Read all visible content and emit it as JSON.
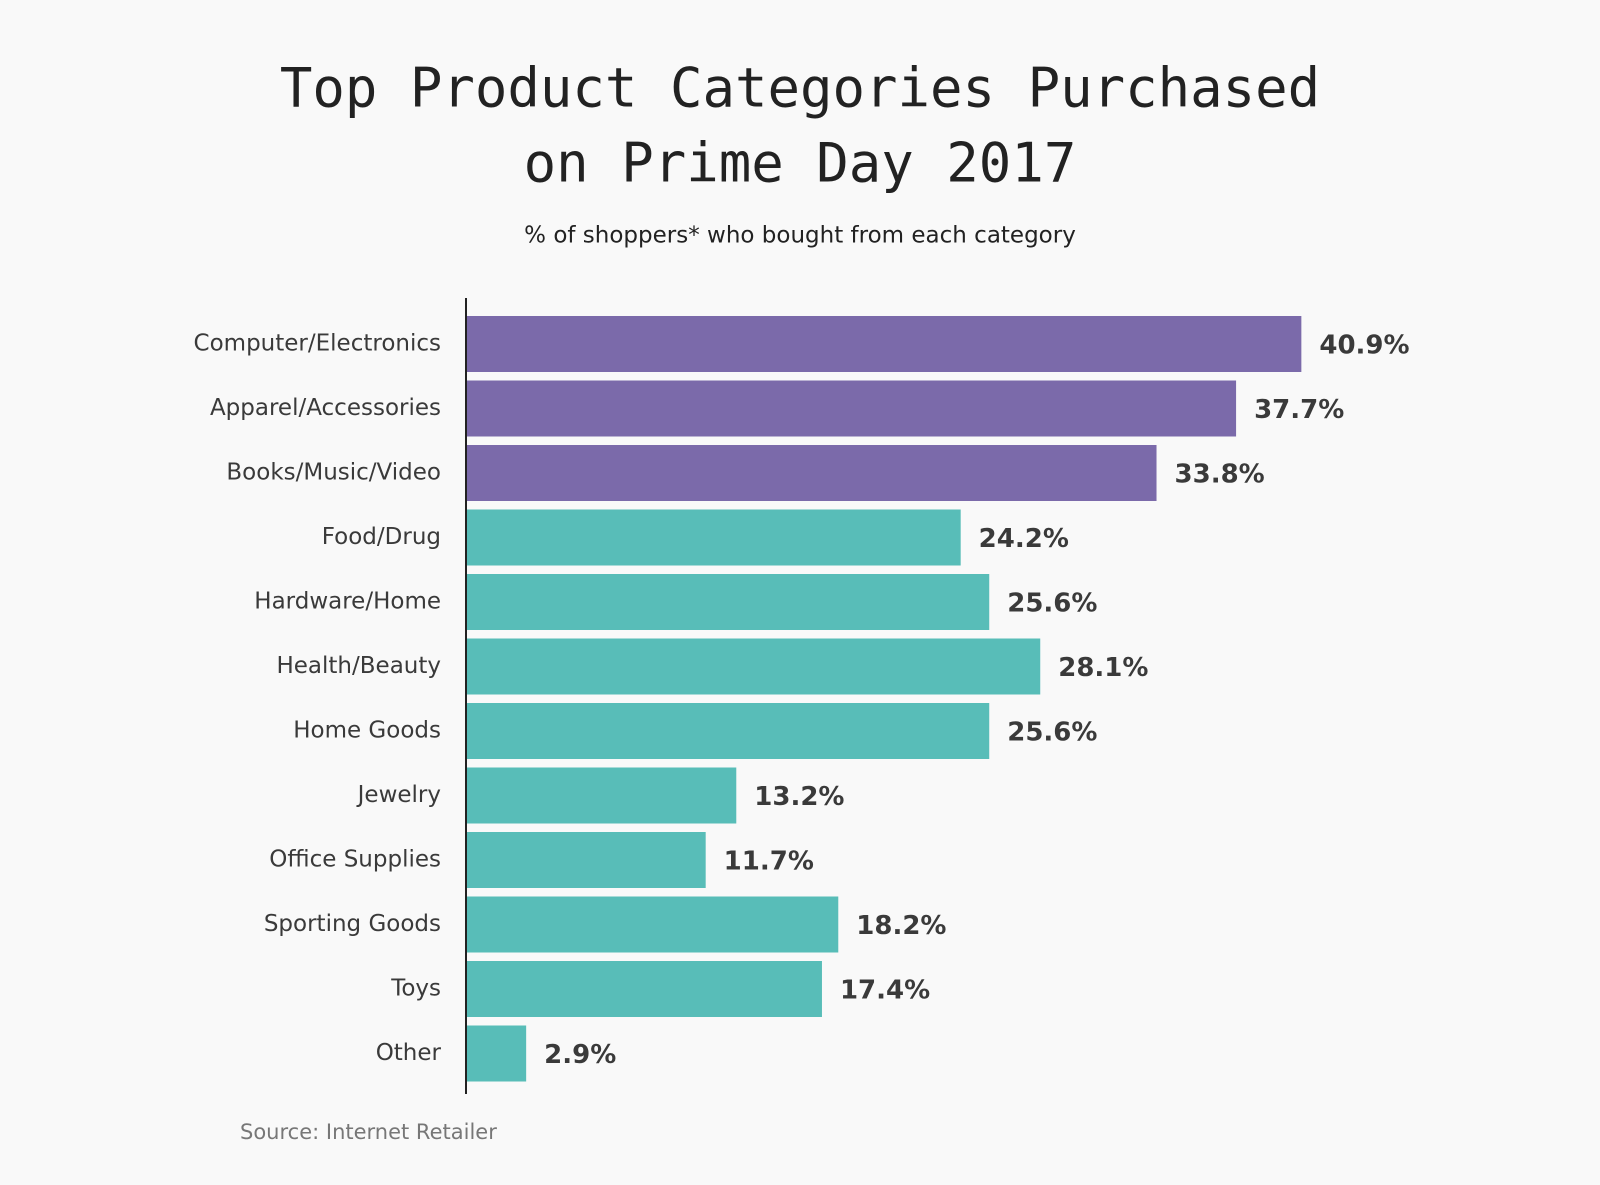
{
  "chart_data": {
    "type": "bar",
    "orientation": "horizontal",
    "title": [
      "Top Product Categories Purchased",
      "on Prime Day 2017"
    ],
    "subtitle": "% of shoppers* who bought from each category",
    "source": "Source:  Internet Retailer",
    "categories": [
      "Computer/Electronics",
      "Apparel/Accessories",
      "Books/Music/Video",
      "Food/Drug",
      "Hardware/Home",
      "Health/Beauty",
      "Home Goods",
      "Jewelry",
      "Office Supplies",
      "Sporting Goods",
      "Toys",
      "Other"
    ],
    "values": [
      40.9,
      37.7,
      33.8,
      24.2,
      25.6,
      28.1,
      25.6,
      13.2,
      11.7,
      18.2,
      17.4,
      2.9
    ],
    "value_labels": [
      "40.9%",
      "37.7%",
      "33.8%",
      "24.2%",
      "25.6%",
      "28.1%",
      "25.6%",
      "13.2%",
      "11.7%",
      "18.2%",
      "17.4%",
      "2.9%"
    ],
    "colors": [
      "#7b6aaa",
      "#7b6aaa",
      "#7b6aaa",
      "#58bdb8",
      "#58bdb8",
      "#58bdb8",
      "#58bdb8",
      "#58bdb8",
      "#58bdb8",
      "#58bdb8",
      "#58bdb8",
      "#58bdb8"
    ]
  }
}
